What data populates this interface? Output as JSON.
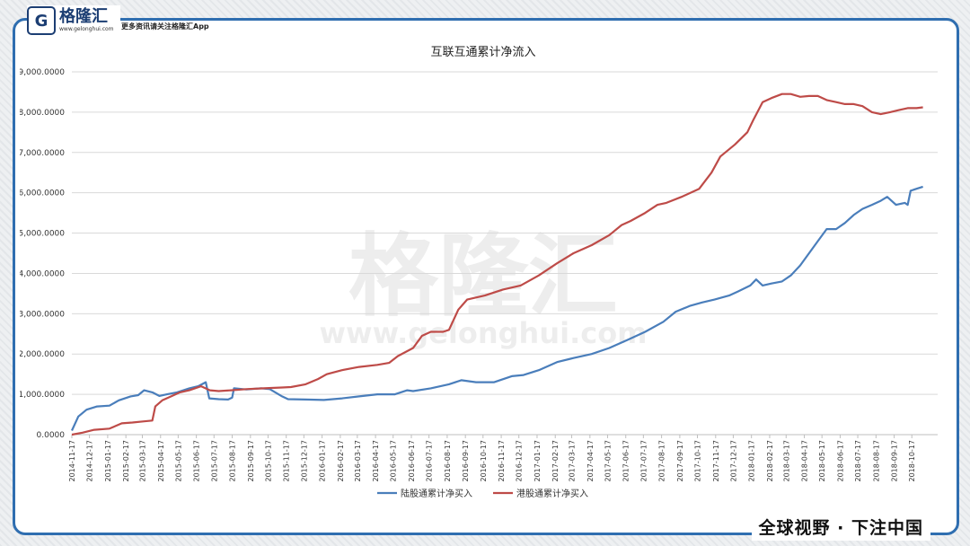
{
  "brand": {
    "logo_letter": "G",
    "name": "格隆汇",
    "url": "www.gelonghui.com",
    "tagline": "更多资讯请关注格隆汇App",
    "watermark_name": "格隆汇",
    "watermark_url": "www.gelonghui.com",
    "footer_slogan": "全球视野 · 下注中国"
  },
  "colors": {
    "frame": "#2f6eb0",
    "series_1": "#4a7ebb",
    "series_2": "#be4b48",
    "grid": "#d9d9d9"
  },
  "chart_data": {
    "type": "line",
    "title": "互联互通累计净流入",
    "xlabel": "",
    "ylabel": "",
    "ylim": [
      0,
      9000
    ],
    "y_ticks": [
      "0.0000",
      "1,000.0000",
      "2,000.0000",
      "3,000.0000",
      "4,000.0000",
      "5,000.0000",
      "6,000.0000",
      "7,000.0000",
      "8,000.0000",
      "9,000.0000"
    ],
    "x_range": [
      "2014-11-17",
      "2018-11-30"
    ],
    "categories": [
      "2014-11-17",
      "2014-12-17",
      "2015-01-17",
      "2015-02-17",
      "2015-03-17",
      "2015-04-17",
      "2015-05-17",
      "2015-06-17",
      "2015-07-17",
      "2015-08-17",
      "2015-09-17",
      "2015-10-17",
      "2015-11-17",
      "2015-12-17",
      "2016-01-17",
      "2016-02-17",
      "2016-03-17",
      "2016-04-17",
      "2016-05-17",
      "2016-06-17",
      "2016-07-17",
      "2016-08-17",
      "2016-09-17",
      "2016-10-17",
      "2016-11-17",
      "2016-12-17",
      "2017-01-17",
      "2017-02-17",
      "2017-03-17",
      "2017-04-17",
      "2017-05-17",
      "2017-06-17",
      "2017-07-17",
      "2017-08-17",
      "2017-09-17",
      "2017-10-17",
      "2017-11-17",
      "2017-12-17",
      "2018-01-17",
      "2018-02-17",
      "2018-03-17",
      "2018-04-17",
      "2018-05-17",
      "2018-06-17",
      "2018-07-17",
      "2018-08-17",
      "2018-09-17",
      "2018-10-17"
    ],
    "legend_position": "bottom",
    "grid": true,
    "series": [
      {
        "name": "陆股通累计净买入",
        "color": "#4a7ebb",
        "points": [
          [
            "2014-11-17",
            100
          ],
          [
            "2014-11-28",
            450
          ],
          [
            "2014-12-12",
            620
          ],
          [
            "2014-12-30",
            700
          ],
          [
            "2015-01-20",
            720
          ],
          [
            "2015-02-05",
            850
          ],
          [
            "2015-02-25",
            950
          ],
          [
            "2015-03-10",
            980
          ],
          [
            "2015-03-20",
            1100
          ],
          [
            "2015-04-03",
            1050
          ],
          [
            "2015-04-15",
            960
          ],
          [
            "2015-04-28",
            1000
          ],
          [
            "2015-05-15",
            1050
          ],
          [
            "2015-06-05",
            1150
          ],
          [
            "2015-06-20",
            1200
          ],
          [
            "2015-07-03",
            1300
          ],
          [
            "2015-07-09",
            900
          ],
          [
            "2015-07-25",
            880
          ],
          [
            "2015-08-10",
            870
          ],
          [
            "2015-08-17",
            920
          ],
          [
            "2015-08-20",
            1150
          ],
          [
            "2015-09-10",
            1120
          ],
          [
            "2015-10-05",
            1150
          ],
          [
            "2015-10-20",
            1130
          ],
          [
            "2015-11-10",
            950
          ],
          [
            "2015-11-20",
            880
          ],
          [
            "2015-12-20",
            870
          ],
          [
            "2016-01-20",
            860
          ],
          [
            "2016-02-20",
            900
          ],
          [
            "2016-03-20",
            950
          ],
          [
            "2016-04-20",
            1000
          ],
          [
            "2016-05-20",
            1000
          ],
          [
            "2016-06-10",
            1100
          ],
          [
            "2016-06-20",
            1080
          ],
          [
            "2016-07-20",
            1150
          ],
          [
            "2016-08-20",
            1250
          ],
          [
            "2016-09-10",
            1350
          ],
          [
            "2016-10-05",
            1300
          ],
          [
            "2016-11-05",
            1300
          ],
          [
            "2016-12-05",
            1450
          ],
          [
            "2016-12-25",
            1480
          ],
          [
            "2017-01-20",
            1600
          ],
          [
            "2017-02-20",
            1800
          ],
          [
            "2017-03-20",
            1900
          ],
          [
            "2017-04-20",
            2000
          ],
          [
            "2017-05-20",
            2150
          ],
          [
            "2017-06-20",
            2350
          ],
          [
            "2017-07-20",
            2550
          ],
          [
            "2017-08-20",
            2800
          ],
          [
            "2017-09-10",
            3050
          ],
          [
            "2017-10-05",
            3200
          ],
          [
            "2017-10-25",
            3280
          ],
          [
            "2017-11-15",
            3350
          ],
          [
            "2017-12-10",
            3450
          ],
          [
            "2017-12-25",
            3550
          ],
          [
            "2018-01-15",
            3700
          ],
          [
            "2018-01-25",
            3850
          ],
          [
            "2018-02-05",
            3700
          ],
          [
            "2018-02-20",
            3750
          ],
          [
            "2018-03-10",
            3800
          ],
          [
            "2018-03-25",
            3950
          ],
          [
            "2018-04-10",
            4200
          ],
          [
            "2018-04-25",
            4500
          ],
          [
            "2018-05-10",
            4800
          ],
          [
            "2018-05-25",
            5100
          ],
          [
            "2018-06-10",
            5100
          ],
          [
            "2018-06-25",
            5250
          ],
          [
            "2018-07-10",
            5450
          ],
          [
            "2018-07-25",
            5600
          ],
          [
            "2018-08-10",
            5700
          ],
          [
            "2018-08-25",
            5800
          ],
          [
            "2018-09-05",
            5900
          ],
          [
            "2018-09-20",
            5700
          ],
          [
            "2018-10-05",
            5750
          ],
          [
            "2018-10-10",
            5700
          ],
          [
            "2018-10-15",
            6050
          ],
          [
            "2018-10-25",
            6100
          ],
          [
            "2018-11-05",
            6150
          ]
        ]
      },
      {
        "name": "港股通累计净买入",
        "color": "#be4b48",
        "points": [
          [
            "2014-11-17",
            0
          ],
          [
            "2014-12-05",
            50
          ],
          [
            "2014-12-25",
            120
          ],
          [
            "2015-01-20",
            150
          ],
          [
            "2015-02-10",
            280
          ],
          [
            "2015-02-28",
            300
          ],
          [
            "2015-03-20",
            330
          ],
          [
            "2015-04-03",
            350
          ],
          [
            "2015-04-08",
            700
          ],
          [
            "2015-04-20",
            850
          ],
          [
            "2015-05-05",
            950
          ],
          [
            "2015-05-20",
            1050
          ],
          [
            "2015-06-05",
            1100
          ],
          [
            "2015-06-25",
            1200
          ],
          [
            "2015-07-10",
            1100
          ],
          [
            "2015-07-25",
            1080
          ],
          [
            "2015-08-15",
            1100
          ],
          [
            "2015-09-10",
            1130
          ],
          [
            "2015-10-10",
            1150
          ],
          [
            "2015-11-10",
            1170
          ],
          [
            "2015-11-25",
            1180
          ],
          [
            "2015-12-20",
            1250
          ],
          [
            "2016-01-10",
            1380
          ],
          [
            "2016-01-25",
            1500
          ],
          [
            "2016-02-20",
            1600
          ],
          [
            "2016-03-20",
            1680
          ],
          [
            "2016-04-20",
            1730
          ],
          [
            "2016-05-10",
            1780
          ],
          [
            "2016-05-25",
            1950
          ],
          [
            "2016-06-20",
            2150
          ],
          [
            "2016-07-05",
            2450
          ],
          [
            "2016-07-20",
            2550
          ],
          [
            "2016-08-10",
            2550
          ],
          [
            "2016-08-20",
            2600
          ],
          [
            "2016-09-05",
            3100
          ],
          [
            "2016-09-20",
            3350
          ],
          [
            "2016-10-20",
            3450
          ],
          [
            "2016-11-20",
            3600
          ],
          [
            "2016-12-20",
            3700
          ],
          [
            "2017-01-20",
            3950
          ],
          [
            "2017-02-20",
            4250
          ],
          [
            "2017-03-20",
            4500
          ],
          [
            "2017-04-20",
            4700
          ],
          [
            "2017-05-20",
            4950
          ],
          [
            "2017-06-10",
            5200
          ],
          [
            "2017-06-25",
            5300
          ],
          [
            "2017-07-20",
            5500
          ],
          [
            "2017-08-10",
            5700
          ],
          [
            "2017-08-25",
            5750
          ],
          [
            "2017-09-20",
            5900
          ],
          [
            "2017-10-20",
            6100
          ],
          [
            "2017-11-10",
            6500
          ],
          [
            "2017-11-25",
            6900
          ],
          [
            "2017-12-20",
            7200
          ],
          [
            "2018-01-10",
            7500
          ],
          [
            "2018-01-20",
            7800
          ],
          [
            "2018-02-05",
            8250
          ],
          [
            "2018-02-20",
            8350
          ],
          [
            "2018-03-10",
            8450
          ],
          [
            "2018-03-25",
            8450
          ],
          [
            "2018-04-10",
            8380
          ],
          [
            "2018-04-25",
            8400
          ],
          [
            "2018-05-10",
            8400
          ],
          [
            "2018-05-25",
            8300
          ],
          [
            "2018-06-10",
            8250
          ],
          [
            "2018-06-25",
            8200
          ],
          [
            "2018-07-10",
            8200
          ],
          [
            "2018-07-25",
            8150
          ],
          [
            "2018-08-10",
            8000
          ],
          [
            "2018-08-25",
            7950
          ],
          [
            "2018-09-10",
            8000
          ],
          [
            "2018-09-25",
            8050
          ],
          [
            "2018-10-10",
            8100
          ],
          [
            "2018-10-25",
            8100
          ],
          [
            "2018-11-05",
            8120
          ]
        ]
      }
    ]
  }
}
